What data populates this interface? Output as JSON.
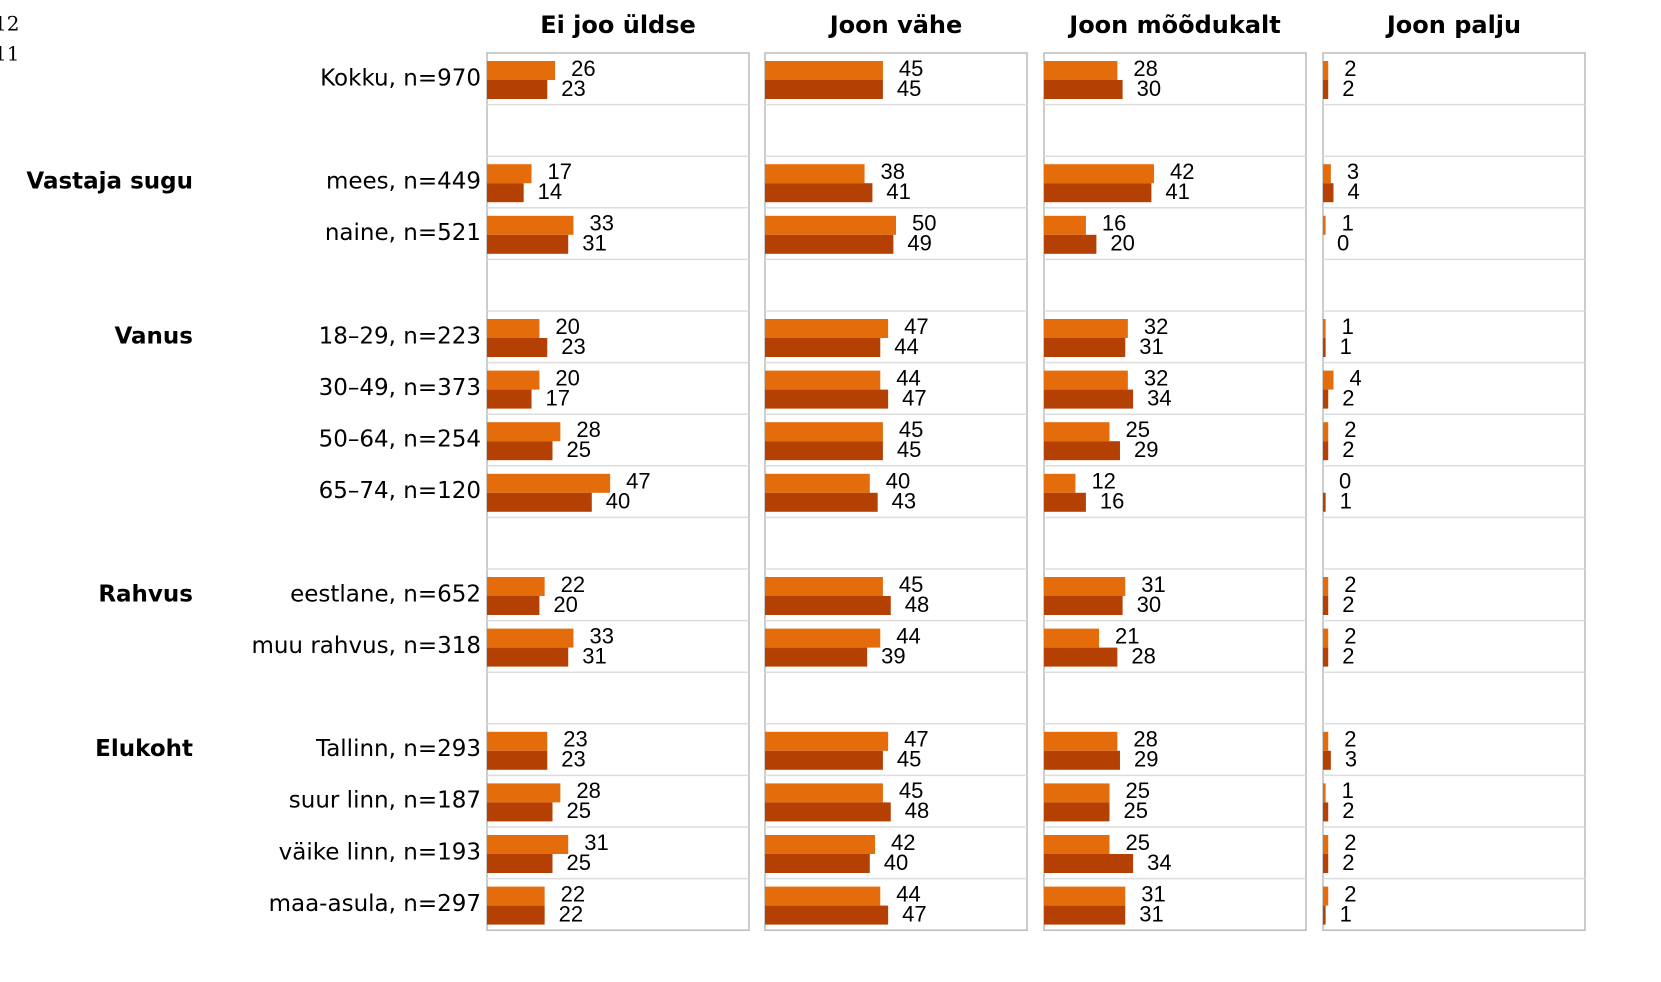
{
  "chart_data": {
    "type": "bar",
    "orientation": "horizontal",
    "xlim": [
      0,
      100
    ],
    "legend": [
      {
        "name": "12",
        "color": "#e46c0a"
      },
      {
        "name": "11",
        "color": "#b54004"
      }
    ],
    "categories": [
      "Kokku, n=970",
      null,
      "mees, n=449",
      "naine, n=521",
      null,
      "18–29, n=223",
      "30–49, n=373",
      "50–64, n=254",
      "65–74, n=120",
      null,
      "eestlane, n=652",
      "muu rahvus, n=318",
      null,
      "Tallinn, n=293",
      "suur linn, n=187",
      "väike linn, n=193",
      "maa-asula, n=297"
    ],
    "groups": [
      null,
      null,
      "Vastaja sugu",
      null,
      null,
      "Vanus",
      null,
      null,
      null,
      null,
      "Rahvus",
      null,
      null,
      "Elukoht",
      null,
      null,
      null
    ],
    "panels": [
      {
        "title": "Ei joo üldse",
        "series": [
          {
            "values": [
              26,
              null,
              17,
              33,
              null,
              20,
              20,
              28,
              47,
              null,
              22,
              33,
              null,
              23,
              28,
              31,
              22
            ]
          },
          {
            "values": [
              23,
              null,
              14,
              31,
              null,
              23,
              17,
              25,
              40,
              null,
              20,
              31,
              null,
              23,
              25,
              25,
              22
            ]
          }
        ]
      },
      {
        "title": "Joon vähe",
        "series": [
          {
            "values": [
              45,
              null,
              38,
              50,
              null,
              47,
              44,
              45,
              40,
              null,
              45,
              44,
              null,
              47,
              45,
              42,
              44
            ]
          },
          {
            "values": [
              45,
              null,
              41,
              49,
              null,
              44,
              47,
              45,
              43,
              null,
              48,
              39,
              null,
              45,
              48,
              40,
              47
            ]
          }
        ]
      },
      {
        "title": "Joon mõõdukalt",
        "series": [
          {
            "values": [
              28,
              null,
              42,
              16,
              null,
              32,
              32,
              25,
              12,
              null,
              31,
              21,
              null,
              28,
              25,
              25,
              31
            ]
          },
          {
            "values": [
              30,
              null,
              41,
              20,
              null,
              31,
              34,
              29,
              16,
              null,
              30,
              28,
              null,
              29,
              25,
              34,
              31
            ]
          }
        ]
      },
      {
        "title": "Joon palju",
        "series": [
          {
            "values": [
              2,
              null,
              3,
              1,
              null,
              1,
              4,
              2,
              0,
              null,
              2,
              2,
              null,
              2,
              1,
              2,
              2
            ]
          },
          {
            "values": [
              2,
              null,
              4,
              0,
              null,
              1,
              2,
              2,
              1,
              null,
              2,
              2,
              null,
              3,
              2,
              2,
              1
            ]
          }
        ]
      }
    ]
  }
}
